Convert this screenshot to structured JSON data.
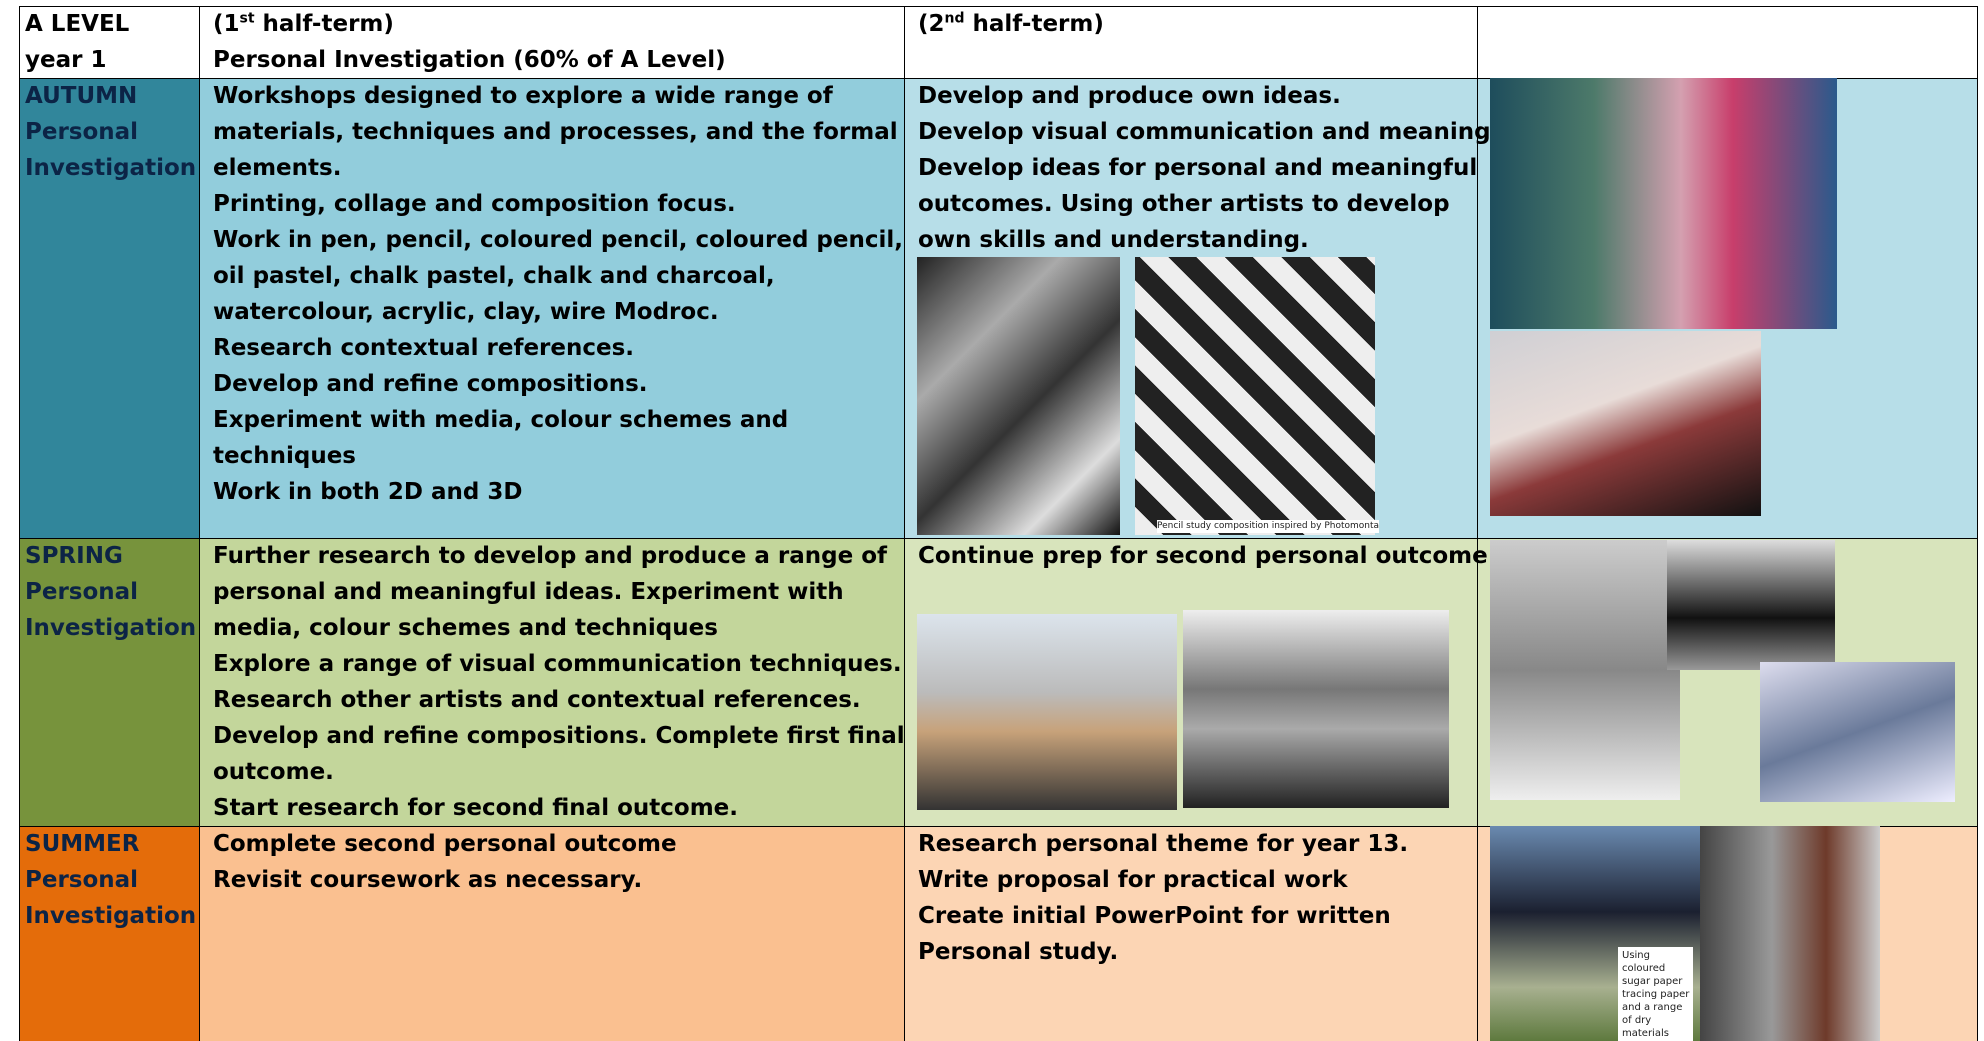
{
  "header": {
    "level": [
      "A LEVEL",
      "year 1"
    ],
    "first": {
      "prefix": "(1",
      "sup": "st",
      "suffix": " half-term)",
      "subtitle": "Personal Investigation (60% of A Level)"
    },
    "second": {
      "prefix": "(2",
      "sup": "nd",
      "suffix": " half-term)"
    }
  },
  "rows": [
    {
      "term": "AUTUMN",
      "label": [
        "Personal",
        "Investigation"
      ],
      "first": [
        "Workshops designed to explore a wide range of",
        "materials, techniques and processes, and the formal",
        "elements.",
        "Printing, collage and composition focus.",
        "Work in pen, pencil, coloured pencil, coloured pencil,",
        "oil pastel, chalk pastel, chalk and charcoal,",
        "watercolour, acrylic, clay, wire Modroc.",
        "Research contextual references.",
        "Develop and refine compositions.",
        "Experiment with media, colour schemes and",
        "techniques",
        "Work in both 2D and 3D"
      ],
      "second": [
        "Develop and produce own ideas.",
        "Develop visual communication and meaning",
        "Develop ideas for personal and meaningful",
        "outcomes. Using other artists to develop",
        "own skills and understanding."
      ],
      "second_caption": "Pencil study composition inspired by Photomonta"
    },
    {
      "term": "SPRING",
      "label": [
        "Personal",
        "Investigation"
      ],
      "first": [
        "Further research to develop and produce a range of",
        "personal and meaningful ideas. Experiment with",
        "media, colour schemes and techniques",
        "Explore a range of visual communication techniques.",
        "Research other artists and contextual references.",
        "Develop and refine compositions. Complete first final",
        "outcome.",
        "Start research for second final outcome."
      ],
      "second": [
        "Continue prep for second personal outcome."
      ]
    },
    {
      "term": "SUMMER",
      "label": [
        "Personal",
        "Investigation"
      ],
      "first": [
        "Complete second personal outcome",
        "Revisit coursework as necessary."
      ],
      "second": [
        "Research personal theme for year 13.",
        "Write proposal for practical work",
        "Create initial PowerPoint for written",
        "Personal study."
      ],
      "third_caption": [
        "Using",
        "coloured",
        "sugar paper",
        "tracing paper",
        "and a range",
        "of dry",
        "materials"
      ]
    }
  ]
}
